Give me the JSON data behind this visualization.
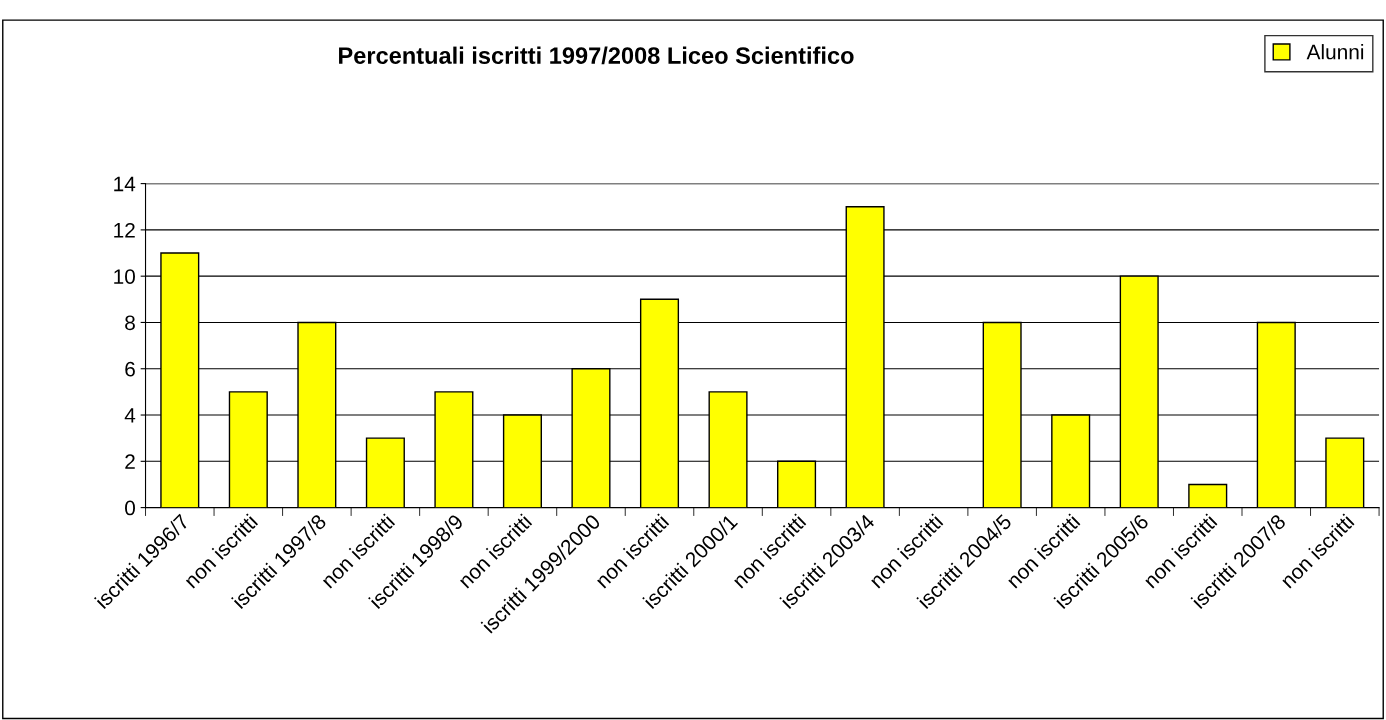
{
  "chart_data": {
    "type": "bar",
    "title": "Percentuali iscritti 1997/2008 Liceo Scientifico",
    "categories": [
      "iscritti 1996/7",
      "non iscritti",
      "iscritti 1997/8",
      "non iscritti",
      "iscritti 1998/9",
      "non iscritti",
      "iscritti 1999/2000",
      "non iscritti",
      "iscritti 2000/1",
      "non iscritti",
      "iscritti 2003/4",
      "non iscritti",
      "iscritti 2004/5",
      "non iscritti",
      "iscritti 2005/6",
      "non iscritti",
      "iscritti 2007/8",
      "non iscritti"
    ],
    "series": [
      {
        "name": "Alunni",
        "color": "#ffff00",
        "values": [
          11,
          5,
          8,
          3,
          5,
          4,
          6,
          9,
          5,
          2,
          13,
          0,
          8,
          4,
          10,
          1,
          8,
          3
        ]
      }
    ],
    "ylim": [
      0,
      14
    ],
    "yticks": [
      0,
      2,
      4,
      6,
      8,
      10,
      12,
      14
    ],
    "grid": "y",
    "legend": "top right"
  }
}
